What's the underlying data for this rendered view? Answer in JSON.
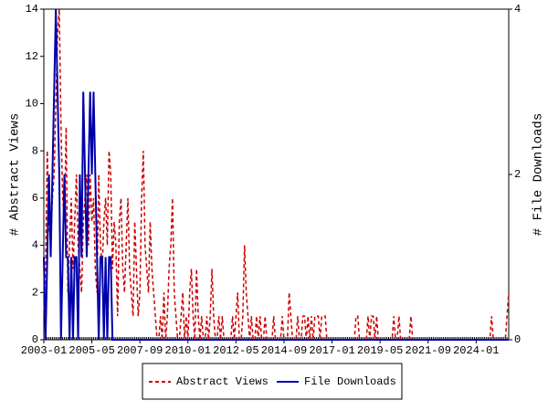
{
  "chart_data": {
    "type": "line",
    "x": [
      "2003-01",
      "2003-02",
      "2003-03",
      "2003-04",
      "2003-05",
      "2003-06",
      "2003-07",
      "2003-08",
      "2003-09",
      "2003-10",
      "2003-11",
      "2003-12",
      "2004-01",
      "2004-02",
      "2004-03",
      "2004-04",
      "2004-05",
      "2004-06",
      "2004-07",
      "2004-08",
      "2004-09",
      "2004-10",
      "2004-11",
      "2004-12",
      "2005-01",
      "2005-02",
      "2005-03",
      "2005-04",
      "2005-05",
      "2005-06",
      "2005-07",
      "2005-08",
      "2005-09",
      "2005-10",
      "2005-11",
      "2005-12",
      "2006-01",
      "2006-02",
      "2006-03",
      "2006-04",
      "2006-05",
      "2006-06",
      "2006-07",
      "2006-08",
      "2006-09",
      "2006-10",
      "2006-11",
      "2006-12",
      "2007-01",
      "2007-02",
      "2007-03",
      "2007-04",
      "2007-05",
      "2007-06",
      "2007-07",
      "2007-08",
      "2007-09",
      "2007-10",
      "2007-11",
      "2007-12",
      "2008-01",
      "2008-02",
      "2008-03",
      "2008-04",
      "2008-05",
      "2008-06",
      "2008-07",
      "2008-08",
      "2008-09",
      "2008-10",
      "2008-11",
      "2008-12",
      "2009-01",
      "2009-02",
      "2009-03",
      "2009-04",
      "2009-05",
      "2009-06",
      "2009-07",
      "2009-08",
      "2009-09",
      "2009-10",
      "2009-11",
      "2009-12",
      "2010-01",
      "2010-02",
      "2010-03",
      "2010-04",
      "2010-05",
      "2010-06",
      "2010-07",
      "2010-08",
      "2010-09",
      "2010-10",
      "2010-11",
      "2010-12",
      "2011-01",
      "2011-02",
      "2011-03",
      "2011-04",
      "2011-05",
      "2011-06",
      "2011-07",
      "2011-08",
      "2011-09",
      "2011-10",
      "2011-11",
      "2011-12",
      "2012-01",
      "2012-02",
      "2012-03",
      "2012-04",
      "2012-05",
      "2012-06",
      "2012-07",
      "2012-08",
      "2012-09",
      "2012-10",
      "2012-11",
      "2012-12",
      "2013-01",
      "2013-02",
      "2013-03",
      "2013-04",
      "2013-05",
      "2013-06",
      "2013-07",
      "2013-08",
      "2013-09",
      "2013-10",
      "2013-11",
      "2013-12",
      "2014-01",
      "2014-02",
      "2014-03",
      "2014-04",
      "2014-05",
      "2014-06",
      "2014-07",
      "2014-08",
      "2014-09",
      "2014-10",
      "2014-11",
      "2014-12",
      "2015-01",
      "2015-02",
      "2015-03",
      "2015-04",
      "2015-05",
      "2015-06",
      "2015-07",
      "2015-08",
      "2015-09",
      "2015-10",
      "2015-11",
      "2015-12",
      "2016-01",
      "2016-02",
      "2016-03",
      "2016-04",
      "2016-05",
      "2016-06",
      "2016-07",
      "2016-08",
      "2016-09",
      "2016-10",
      "2016-11",
      "2016-12",
      "2017-01",
      "2017-02",
      "2017-03",
      "2017-04",
      "2017-05",
      "2017-06",
      "2017-07",
      "2017-08",
      "2017-09",
      "2017-10",
      "2017-11",
      "2017-12",
      "2018-01",
      "2018-02",
      "2018-03",
      "2018-04",
      "2018-05",
      "2018-06",
      "2018-07",
      "2018-08",
      "2018-09",
      "2018-10",
      "2018-11",
      "2018-12",
      "2019-01",
      "2019-02",
      "2019-03",
      "2019-04",
      "2019-05",
      "2019-06",
      "2019-07",
      "2019-08",
      "2019-09",
      "2019-10",
      "2019-11",
      "2019-12",
      "2020-01",
      "2020-02",
      "2020-03",
      "2020-04",
      "2020-05",
      "2020-06",
      "2020-07",
      "2020-08",
      "2020-09",
      "2020-10",
      "2020-11",
      "2020-12",
      "2021-01",
      "2021-02",
      "2021-03",
      "2021-04",
      "2021-05",
      "2021-06",
      "2021-07",
      "2021-08",
      "2021-09",
      "2021-10",
      "2021-11",
      "2021-12",
      "2022-01",
      "2022-02",
      "2022-03",
      "2022-04",
      "2022-05",
      "2022-06",
      "2022-07",
      "2022-08",
      "2022-09",
      "2022-10",
      "2022-11",
      "2022-12",
      "2023-01",
      "2023-02",
      "2023-03",
      "2023-04",
      "2023-05",
      "2023-06",
      "2023-07",
      "2023-08",
      "2023-09",
      "2023-10",
      "2023-11",
      "2023-12",
      "2024-01",
      "2024-02",
      "2024-03",
      "2024-04",
      "2024-05",
      "2024-06",
      "2024-07",
      "2024-08",
      "2024-09",
      "2024-10",
      "2024-11",
      "2024-12",
      "2025-01",
      "2025-02",
      "2025-03",
      "2025-04",
      "2025-05",
      "2025-06",
      "2025-07",
      "2025-08"
    ],
    "xticks": [
      "2003-01",
      "2005-05",
      "2007-09",
      "2010-01",
      "2012-05",
      "2014-09",
      "2017-01",
      "2019-05",
      "2021-09",
      "2024-01"
    ],
    "ylabel": "# Abstract Views",
    "y2label": "# File Downloads",
    "ylim": [
      0,
      14
    ],
    "yticks": [
      0,
      2,
      4,
      6,
      8,
      10,
      12,
      14
    ],
    "y2lim": [
      0,
      4
    ],
    "y2ticks": [
      0,
      2,
      4
    ],
    "legend": "bottom",
    "series": [
      {
        "name": "Abstract Views",
        "color": "#cc0000",
        "dash": true,
        "values": [
          1,
          3,
          8,
          5,
          4,
          6,
          7,
          10,
          13,
          14,
          9,
          6,
          5,
          9,
          2,
          4,
          6,
          3,
          5,
          7,
          4,
          3,
          2,
          5,
          6,
          7,
          4,
          7,
          5,
          6,
          3,
          2,
          7,
          4,
          3,
          5,
          6,
          4,
          8,
          7,
          3,
          5,
          4,
          1,
          5,
          6,
          3,
          2,
          4,
          6,
          3,
          2,
          1,
          5,
          3,
          1,
          2,
          6,
          8,
          4,
          3,
          2,
          5,
          3,
          2,
          1,
          0,
          0,
          1,
          0,
          2,
          0,
          1,
          3,
          4,
          6,
          2,
          1,
          0,
          0,
          1,
          2,
          0,
          1,
          0,
          2,
          3,
          1,
          0,
          3,
          1,
          0,
          1,
          0,
          0,
          1,
          0,
          1,
          3,
          1,
          0,
          0,
          1,
          0,
          1,
          0,
          0,
          0,
          0,
          0,
          1,
          0,
          1,
          2,
          0,
          0,
          1,
          4,
          2,
          1,
          0,
          1,
          0,
          0,
          1,
          0,
          1,
          0,
          0,
          1,
          0,
          0,
          0,
          0,
          1,
          0,
          0,
          0,
          0,
          1,
          0,
          0,
          0,
          2,
          1,
          0,
          0,
          0,
          1,
          0,
          0,
          1,
          1,
          0,
          1,
          0,
          1,
          0,
          1,
          1,
          1,
          0,
          1,
          1,
          1,
          0,
          0,
          0,
          0,
          0,
          0,
          0,
          0,
          0,
          0,
          0,
          0,
          0,
          0,
          0,
          0,
          0,
          1,
          1,
          0,
          0,
          0,
          0,
          0,
          1,
          0,
          1,
          1,
          0,
          1,
          0,
          0,
          0,
          0,
          0,
          0,
          0,
          0,
          0,
          1,
          0,
          0,
          1,
          0,
          0,
          0,
          0,
          0,
          0,
          1,
          0,
          0,
          0,
          0,
          0,
          0,
          0,
          0,
          0,
          0,
          0,
          0,
          0,
          0,
          0,
          0,
          0,
          0,
          0,
          0,
          0,
          0,
          0,
          0,
          0,
          0,
          0,
          0,
          0,
          0,
          0,
          0,
          0,
          0,
          0,
          0,
          0,
          0,
          0,
          0,
          0,
          0,
          0,
          0,
          0,
          0,
          1,
          0,
          0,
          0,
          0,
          0,
          0,
          0,
          0,
          1,
          2
        ]
      },
      {
        "name": "File Downloads",
        "color": "#0000aa",
        "axis": "y2",
        "values": [
          1,
          0,
          1,
          2,
          1,
          2,
          3,
          4,
          3,
          2,
          0,
          1,
          2,
          1,
          1,
          0,
          1,
          0,
          1,
          1,
          0,
          2,
          1,
          3,
          2,
          1,
          2,
          3,
          2,
          3,
          2,
          1,
          0,
          1,
          1,
          0,
          1,
          0,
          1,
          1,
          0,
          0,
          0,
          0,
          0,
          0,
          0,
          0,
          0,
          0,
          0,
          0,
          0,
          0,
          0,
          0,
          0,
          0,
          0,
          0,
          0,
          0,
          0,
          0,
          0,
          0,
          0,
          0,
          0,
          0,
          0,
          0,
          0,
          0,
          0,
          0,
          0,
          0,
          0,
          0,
          0,
          0,
          0,
          0,
          0,
          0,
          0,
          0,
          0,
          0,
          0,
          0,
          0,
          0,
          0,
          0,
          0,
          0,
          0,
          0,
          0,
          0,
          0,
          0,
          0,
          0,
          0,
          0,
          0,
          0,
          0,
          0,
          0,
          0,
          0,
          0,
          0,
          0,
          0,
          0,
          0,
          0,
          0,
          0,
          0,
          0,
          0,
          0,
          0,
          0,
          0,
          0,
          0,
          0,
          0,
          0,
          0,
          0,
          0,
          0,
          0,
          0,
          0,
          0,
          0,
          0,
          0,
          0,
          0,
          0,
          0,
          0,
          0,
          0,
          0,
          0,
          0,
          0,
          0,
          0,
          0,
          0,
          0,
          0,
          0,
          0,
          0,
          0,
          0,
          0,
          0,
          0,
          0,
          0,
          0,
          0,
          0,
          0,
          0,
          0,
          0,
          0,
          0,
          0,
          0,
          0,
          0,
          0,
          0,
          0,
          0,
          0,
          0,
          0,
          0,
          0,
          0,
          0,
          0,
          0,
          0,
          0,
          0,
          0,
          0,
          0,
          0,
          0,
          0,
          0,
          0,
          0,
          0,
          0,
          0,
          0,
          0,
          0,
          0,
          0,
          0,
          0,
          0,
          0,
          0,
          0,
          0,
          0,
          0,
          0,
          0,
          0,
          0,
          0,
          0,
          0,
          0,
          0,
          0,
          0,
          0,
          0,
          0,
          0,
          0,
          0,
          0,
          0,
          0,
          0,
          0,
          0,
          0,
          0,
          0,
          0,
          0,
          0,
          0,
          0,
          0,
          0,
          0,
          0,
          0,
          0,
          0,
          0,
          0,
          0,
          0,
          0
        ]
      }
    ]
  }
}
